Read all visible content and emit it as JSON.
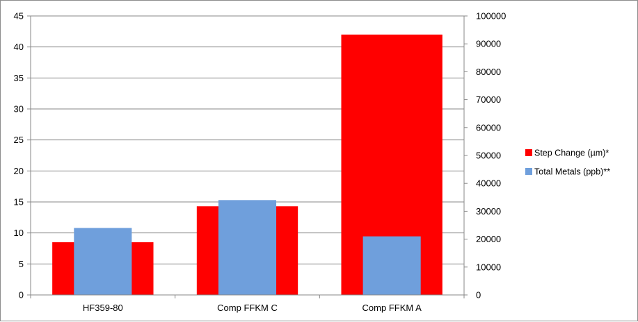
{
  "chart_data": {
    "type": "bar",
    "categories": [
      "HF359-80",
      "Comp FFKM C",
      "Comp FFKM A"
    ],
    "series": [
      {
        "name": "Step Change (µm)*",
        "axis": "left",
        "color": "#ff0000",
        "values": [
          8.5,
          14.3,
          42
        ]
      },
      {
        "name": "Total Metals (ppb)**",
        "axis": "right",
        "color": "#6f9fdc",
        "values": [
          24000,
          34000,
          21000
        ]
      }
    ],
    "ylim_left": [
      0,
      45
    ],
    "yticks_left": [
      0,
      5,
      10,
      15,
      20,
      25,
      30,
      35,
      40,
      45
    ],
    "ylim_right": [
      0,
      100000
    ],
    "yticks_right": [
      0,
      10000,
      20000,
      30000,
      40000,
      50000,
      60000,
      70000,
      80000,
      90000,
      100000
    ],
    "grid": true,
    "legend_position": "right",
    "title": "",
    "xlabel": "",
    "ylabel": ""
  }
}
